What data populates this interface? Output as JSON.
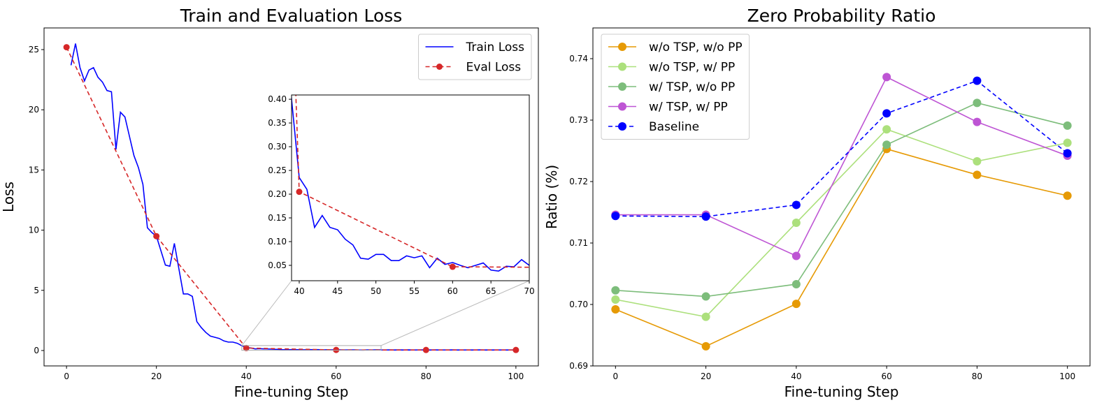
{
  "chart_data": [
    {
      "type": "line",
      "title": "Train and Evaluation Loss",
      "xlabel": "Fine-tuning Step",
      "ylabel": "Loss",
      "xlim": [
        -5,
        105
      ],
      "ylim": [
        -1.28,
        26.8
      ],
      "xticks": [
        0,
        20,
        40,
        60,
        80,
        100
      ],
      "yticks": [
        0,
        5,
        10,
        15,
        20,
        25
      ],
      "legend": "upper right",
      "grid": false,
      "series": [
        {
          "name": "Train Loss",
          "color": "#0000ff",
          "linestyle": "solid",
          "marker": "none",
          "x": [
            1,
            2,
            3,
            4,
            5,
            6,
            7,
            8,
            9,
            10,
            11,
            12,
            13,
            14,
            15,
            16,
            17,
            18,
            19,
            20,
            21,
            22,
            23,
            24,
            25,
            26,
            27,
            28,
            29,
            30,
            31,
            32,
            33,
            34,
            35,
            36,
            37,
            38,
            39,
            40,
            41,
            42,
            43,
            44,
            45,
            46,
            47,
            48,
            49,
            50,
            51,
            52,
            53,
            54,
            55,
            56,
            57,
            58,
            59,
            60,
            61,
            62,
            63,
            64,
            65,
            66,
            67,
            68,
            69,
            70,
            71,
            72,
            73,
            74,
            75,
            76,
            77,
            78,
            79,
            80,
            81,
            82,
            83,
            84,
            85,
            86,
            87,
            88,
            89,
            90,
            91,
            92,
            93,
            94,
            95,
            96,
            97,
            98,
            99,
            100
          ],
          "values": [
            23.7,
            25.5,
            23.5,
            22.4,
            23.3,
            23.5,
            22.7,
            22.3,
            21.6,
            21.5,
            16.7,
            19.8,
            19.4,
            17.8,
            16.2,
            15.2,
            13.8,
            10.2,
            9.8,
            9.5,
            8.3,
            7.1,
            7.0,
            8.9,
            6.8,
            4.7,
            4.7,
            4.5,
            2.4,
            1.9,
            1.5,
            1.2,
            1.1,
            1.0,
            0.8,
            0.7,
            0.7,
            0.6,
            0.4,
            0.235,
            0.21,
            0.13,
            0.155,
            0.13,
            0.125,
            0.105,
            0.093,
            0.065,
            0.063,
            0.073,
            0.073,
            0.06,
            0.06,
            0.07,
            0.066,
            0.07,
            0.045,
            0.065,
            0.052,
            0.056,
            0.05,
            0.045,
            0.05,
            0.055,
            0.04,
            0.038,
            0.048,
            0.047,
            0.062,
            0.05,
            0.047,
            0.05,
            0.045,
            0.048,
            0.046,
            0.05,
            0.044,
            0.047,
            0.049,
            0.045,
            0.046,
            0.048,
            0.044,
            0.047,
            0.045,
            0.049,
            0.046,
            0.044,
            0.047,
            0.045,
            0.046,
            0.048,
            0.044,
            0.046,
            0.045,
            0.047,
            0.044,
            0.046,
            0.045,
            0.046
          ]
        },
        {
          "name": "Eval Loss",
          "color": "#d62728",
          "linestyle": "dashed",
          "marker": "circle",
          "x": [
            0,
            20,
            40,
            60,
            80,
            100
          ],
          "values": [
            25.2,
            9.5,
            0.205,
            0.047,
            0.045,
            0.045
          ]
        }
      ],
      "inset": {
        "xlim": [
          39,
          70
        ],
        "ylim": [
          0.0176,
          0.409
        ],
        "xticks": [
          40,
          45,
          50,
          55,
          60,
          65,
          70
        ],
        "yticks": [
          0.05,
          {
            "value": 0.1,
            "label": "0.10"
          },
          0.15,
          {
            "value": 0.2,
            "label": "0.20"
          },
          0.25,
          {
            "value": 0.3,
            "label": "0.30"
          },
          0.35,
          {
            "value": 0.4,
            "label": "0.40"
          }
        ]
      }
    },
    {
      "type": "line",
      "title": "Zero Probability Ratio",
      "xlabel": "Fine-tuning Step",
      "ylabel": "Ratio (%)",
      "xlim": [
        -5,
        105
      ],
      "ylim": [
        0.69,
        0.745
      ],
      "xticks": [
        0,
        20,
        40,
        60,
        80,
        100
      ],
      "yticks": [
        0.69,
        {
          "value": 0.7,
          "label": "0.70"
        },
        0.71,
        0.72,
        0.73,
        0.74
      ],
      "legend": "upper left",
      "grid": false,
      "x": [
        0,
        20,
        40,
        60,
        80,
        100
      ],
      "series": [
        {
          "name": "w/o TSP, w/o PP",
          "color": "#e69a05",
          "linestyle": "solid",
          "marker": "circle",
          "values": [
            0.6992,
            0.6932,
            0.7001,
            0.7253,
            0.7211,
            0.7177
          ]
        },
        {
          "name": "w/o TSP, w/ PP",
          "color": "#ace07c",
          "linestyle": "solid",
          "marker": "circle",
          "values": [
            0.7008,
            0.698,
            0.7133,
            0.7285,
            0.7233,
            0.7263
          ]
        },
        {
          "name": "w/ TSP, w/o PP",
          "color": "#7dbd7b",
          "linestyle": "solid",
          "marker": "circle",
          "values": [
            0.7023,
            0.7013,
            0.7033,
            0.726,
            0.7328,
            0.7291
          ]
        },
        {
          "name": "w/ TSP, w/ PP",
          "color": "#be55d4",
          "linestyle": "solid",
          "marker": "circle",
          "values": [
            0.7146,
            0.7146,
            0.7079,
            0.737,
            0.7297,
            0.7242
          ]
        },
        {
          "name": "Baseline",
          "color": "#0000ff",
          "linestyle": "dashed",
          "marker": "circle",
          "values": [
            0.7144,
            0.7143,
            0.7162,
            0.7311,
            0.7364,
            0.7246
          ]
        }
      ]
    }
  ]
}
